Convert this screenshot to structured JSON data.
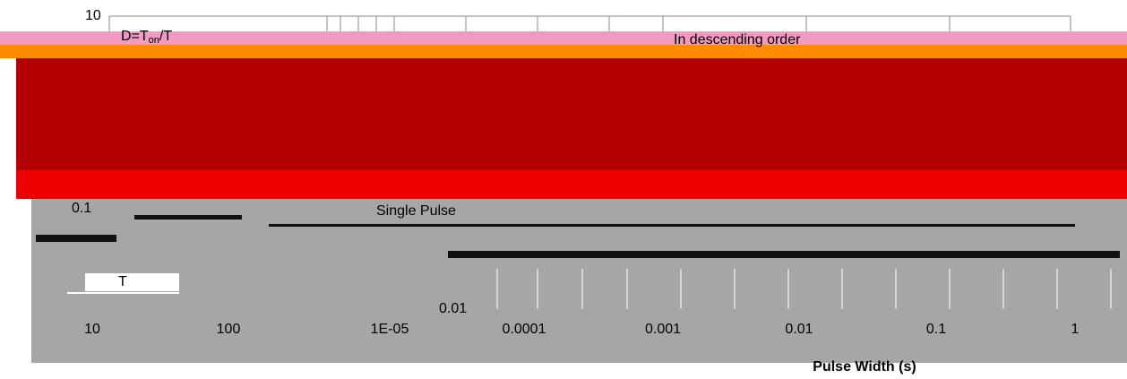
{
  "y_tick_labels": [
    "10",
    "0.1",
    "0.01"
  ],
  "x_tick_labels": [
    "10",
    "100",
    "1E-05",
    "0.0001",
    "0.001",
    "0.01",
    "0.1",
    "1"
  ],
  "x_axis_label": "Pulse Width (s)",
  "annotations": {
    "duty": [
      "D=T",
      "on",
      "/T"
    ],
    "order": "In descending order",
    "single": "Single Pulse",
    "period": "T"
  }
}
